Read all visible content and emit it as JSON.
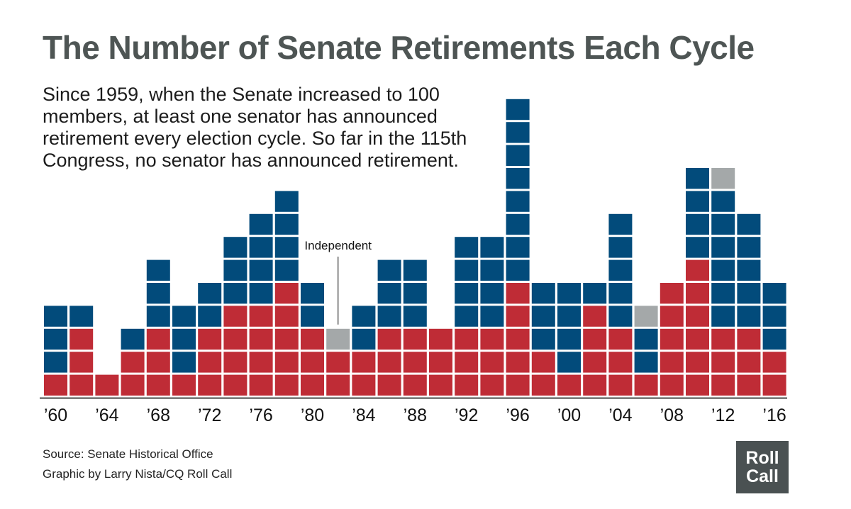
{
  "header": {
    "title": "The Number of Senate Retirements Each Cycle",
    "subtitle": "Since 1959, when the Senate increased to 100 members, at least one senator has announced retirement every election cycle.  So far in the 115th Congress, no senator has announced retirement."
  },
  "footer": {
    "source": "Source: Senate Historical Office",
    "credit": "Graphic by Larry Nista/CQ Roll Call",
    "logo_line1": "Roll",
    "logo_line2": "Call"
  },
  "colors": {
    "Democrat": "#024b7b",
    "Republican": "#bf2c36",
    "Independent": "#a4a8a9",
    "title": "#4e5554",
    "logo_bg": "#4a5152"
  },
  "chart_data": {
    "type": "bar",
    "stacked": true,
    "x": [
      1960,
      1962,
      1964,
      1966,
      1968,
      1970,
      1972,
      1974,
      1976,
      1978,
      1980,
      1982,
      1984,
      1986,
      1988,
      1990,
      1992,
      1994,
      1996,
      1998,
      2000,
      2002,
      2004,
      2006,
      2008,
      2010,
      2012,
      2014,
      2016
    ],
    "series": [
      {
        "name": "",
        "color_key": "Republican",
        "values": [
          1,
          3,
          1,
          2,
          3,
          1,
          3,
          4,
          4,
          5,
          3,
          2,
          2,
          3,
          3,
          3,
          3,
          3,
          5,
          2,
          1,
          4,
          3,
          1,
          5,
          6,
          3,
          3,
          2
        ]
      },
      {
        "name": "",
        "color_key": "Democrat",
        "values": [
          3,
          1,
          0,
          1,
          3,
          3,
          2,
          3,
          4,
          4,
          2,
          0,
          2,
          3,
          3,
          0,
          4,
          4,
          8,
          3,
          4,
          1,
          5,
          2,
          0,
          4,
          6,
          5,
          3
        ]
      },
      {
        "name": "Independent",
        "color_key": "Independent",
        "values": [
          0,
          0,
          0,
          0,
          0,
          0,
          0,
          0,
          0,
          0,
          0,
          1,
          0,
          0,
          0,
          0,
          0,
          0,
          0,
          0,
          0,
          0,
          0,
          1,
          0,
          0,
          1,
          0,
          0
        ]
      }
    ],
    "tick_labels": [
      {
        "x": 1960,
        "label": "’60"
      },
      {
        "x": 1964,
        "label": "’64"
      },
      {
        "x": 1968,
        "label": "’68"
      },
      {
        "x": 1972,
        "label": "’72"
      },
      {
        "x": 1976,
        "label": "’76"
      },
      {
        "x": 1980,
        "label": "’80"
      },
      {
        "x": 1984,
        "label": "’84"
      },
      {
        "x": 1988,
        "label": "’88"
      },
      {
        "x": 1992,
        "label": "’92"
      },
      {
        "x": 1996,
        "label": "’96"
      },
      {
        "x": 2000,
        "label": "’00"
      },
      {
        "x": 2004,
        "label": "’04"
      },
      {
        "x": 2008,
        "label": "’08"
      },
      {
        "x": 2012,
        "label": "’12"
      },
      {
        "x": 2016,
        "label": "’16"
      }
    ],
    "annotations": [
      {
        "x": 1982,
        "text": "Independent"
      }
    ],
    "xlabel": "",
    "ylabel": "",
    "ylim": [
      0,
      13
    ],
    "grid": false,
    "legend": "none"
  }
}
